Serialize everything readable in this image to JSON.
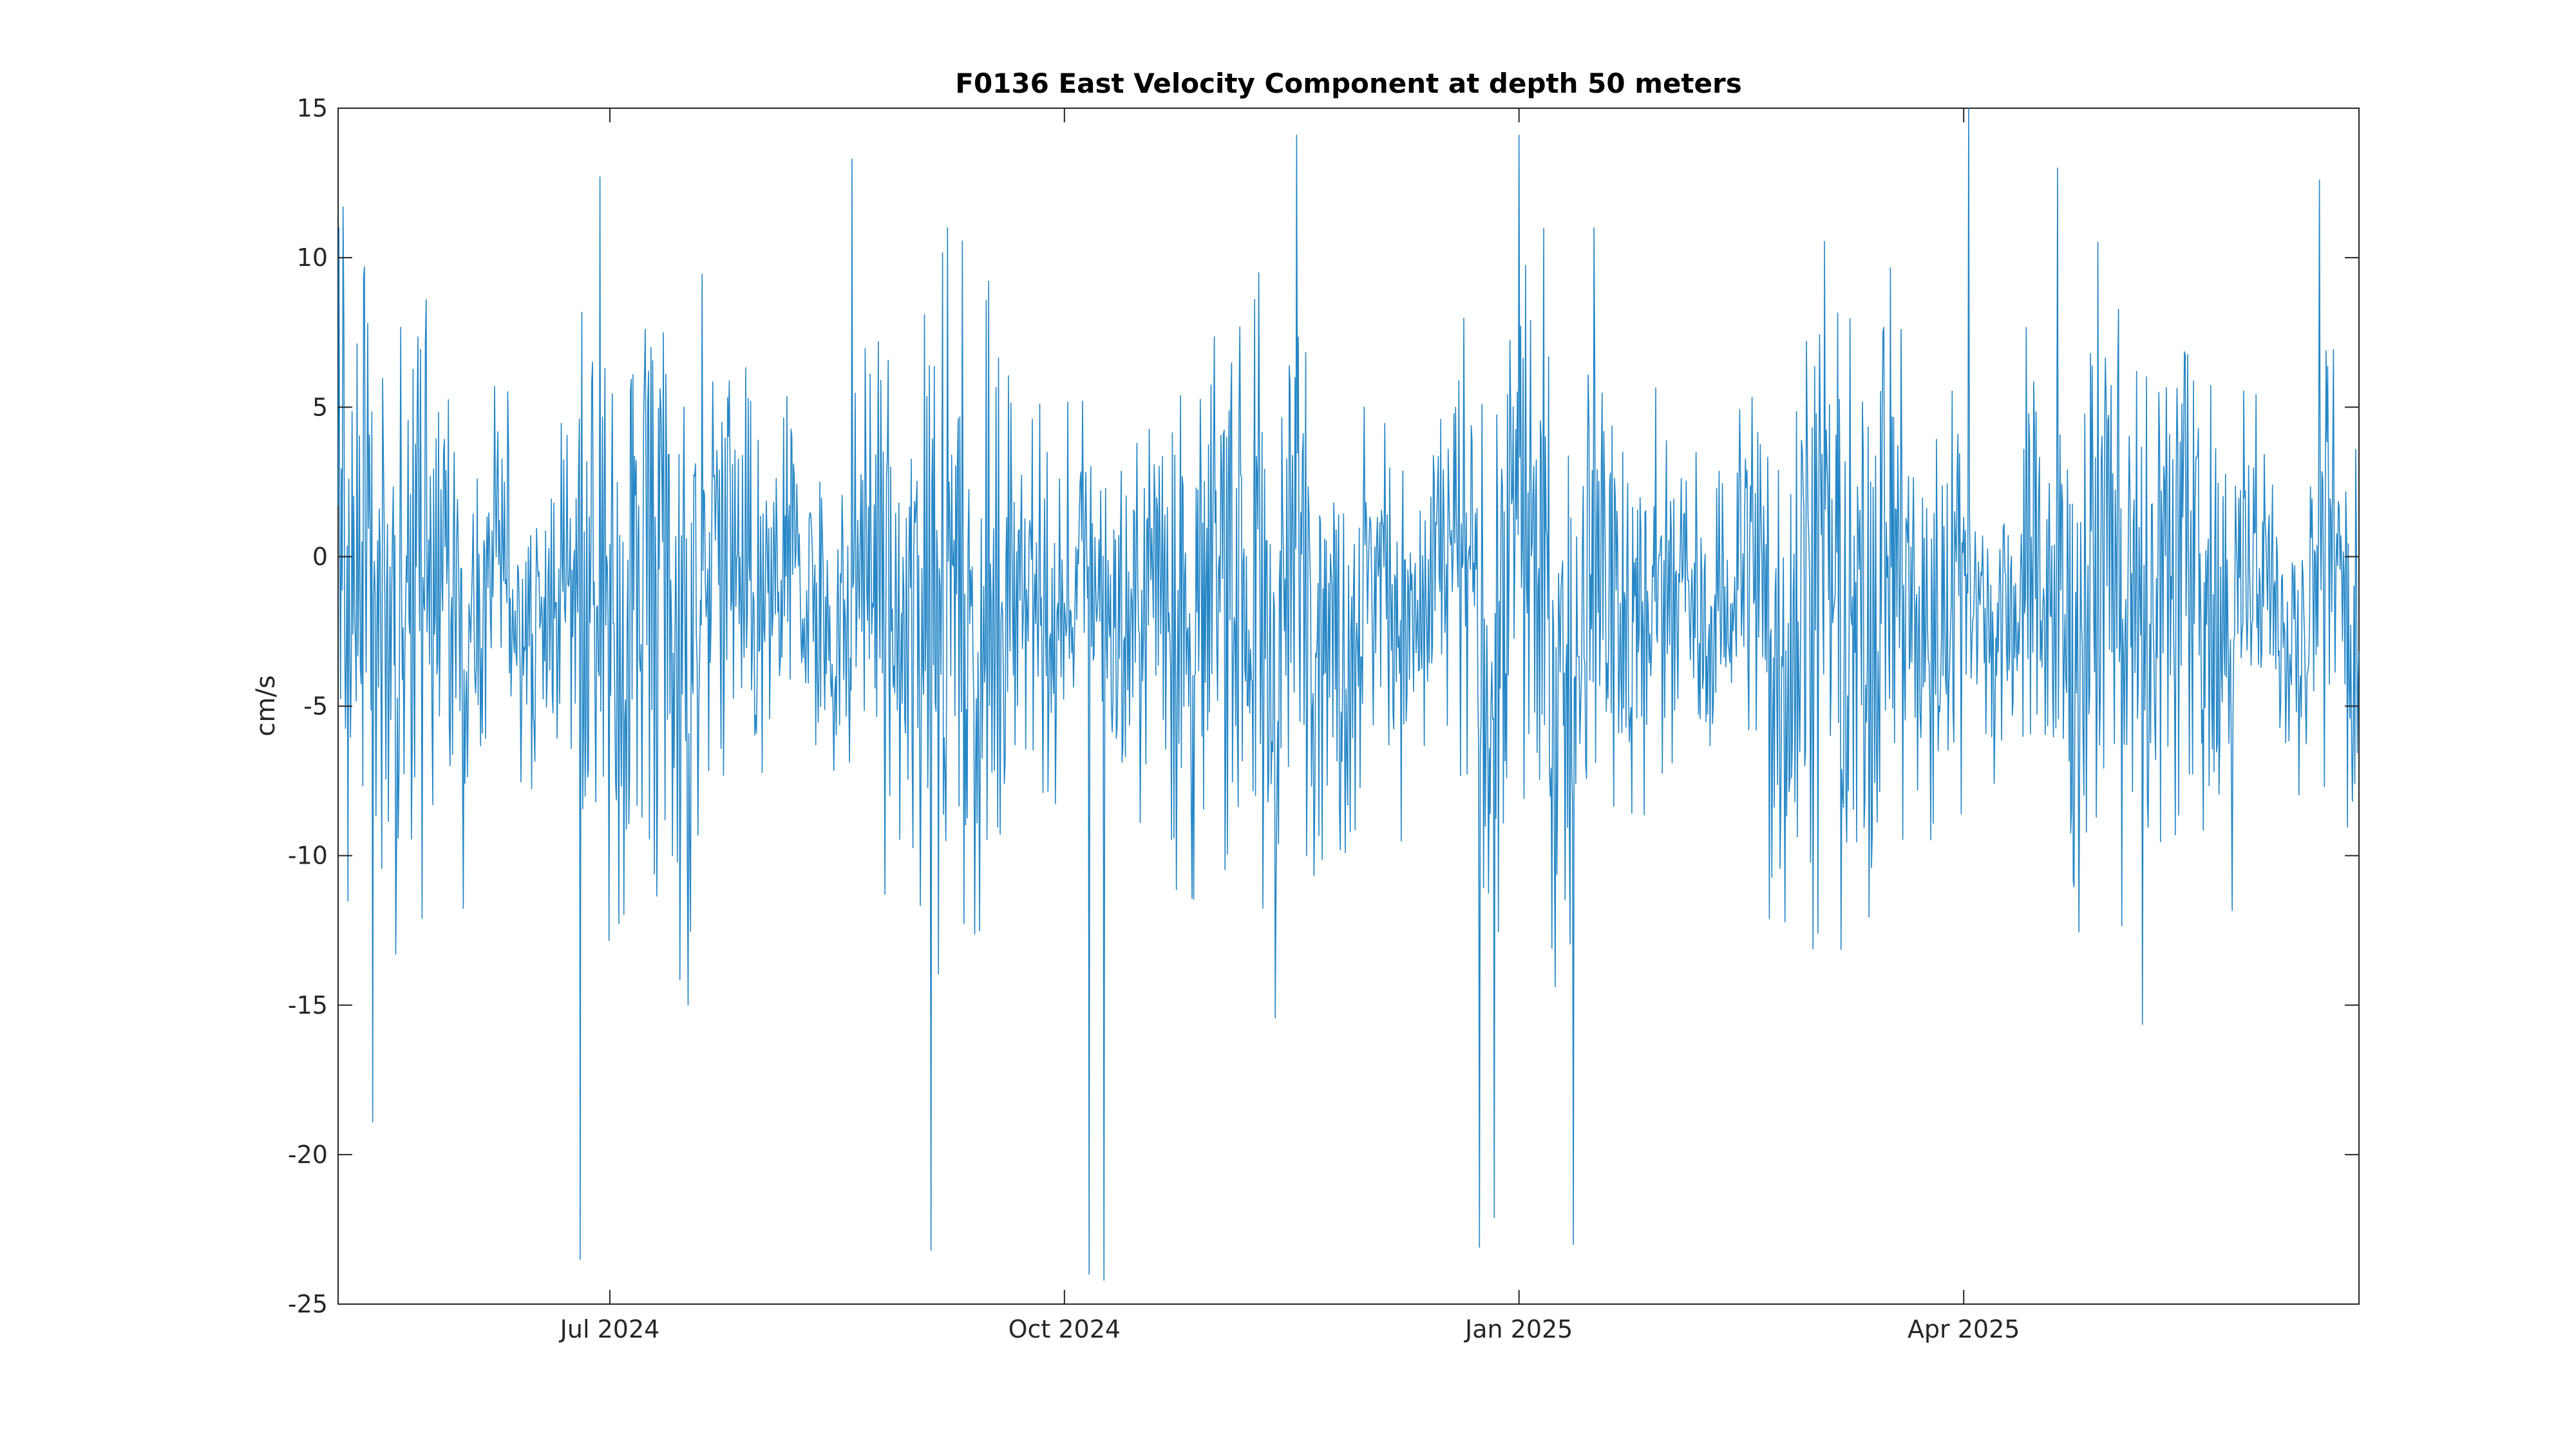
{
  "chart_data": {
    "type": "line",
    "title": "F0136 East Velocity Component at depth 50 meters",
    "xlabel": "",
    "ylabel": "cm/s",
    "x_axis_kind": "date",
    "xlim": [
      "2024-05-07",
      "2025-06-20"
    ],
    "ylim": [
      -25,
      15
    ],
    "yticks": [
      15,
      10,
      5,
      0,
      -5,
      -10,
      -15,
      -20,
      -25
    ],
    "xticks": [
      {
        "date": "2024-07-01",
        "label": "Jul 2024"
      },
      {
        "date": "2024-10-01",
        "label": "Oct 2024"
      },
      {
        "date": "2025-01-01",
        "label": "Jan 2025"
      },
      {
        "date": "2025-04-01",
        "label": "Apr 2025"
      }
    ],
    "grid": false,
    "series": [
      {
        "color": "#0072BD",
        "sampling": "hourly",
        "start": "2024-05-07",
        "end": "2025-06-20",
        "summary": {
          "mean": -1.5,
          "typical_range": [
            -12,
            8
          ],
          "max": 15.0,
          "max_date": "2025-04-02",
          "min": -24.2,
          "min_date": "2024-10-09"
        },
        "annotated_extremes": [
          {
            "date": "2024-05-08",
            "value": 11.7
          },
          {
            "date": "2024-05-14",
            "value": -18.9
          },
          {
            "date": "2024-06-25",
            "value": -23.5
          },
          {
            "date": "2024-06-29",
            "value": 12.7
          },
          {
            "date": "2024-08-19",
            "value": 13.3
          },
          {
            "date": "2024-09-04",
            "value": -23.2
          },
          {
            "date": "2024-10-06",
            "value": -24.0
          },
          {
            "date": "2024-10-09",
            "value": -24.2
          },
          {
            "date": "2024-11-17",
            "value": 14.1
          },
          {
            "date": "2024-12-24",
            "value": -23.1
          },
          {
            "date": "2024-12-27",
            "value": -22.1
          },
          {
            "date": "2025-01-01",
            "value": 14.1
          },
          {
            "date": "2025-01-12",
            "value": -23.0
          },
          {
            "date": "2025-04-02",
            "value": 15.0
          },
          {
            "date": "2025-04-20",
            "value": 13.0
          },
          {
            "date": "2025-06-12",
            "value": 12.6
          }
        ]
      }
    ]
  }
}
